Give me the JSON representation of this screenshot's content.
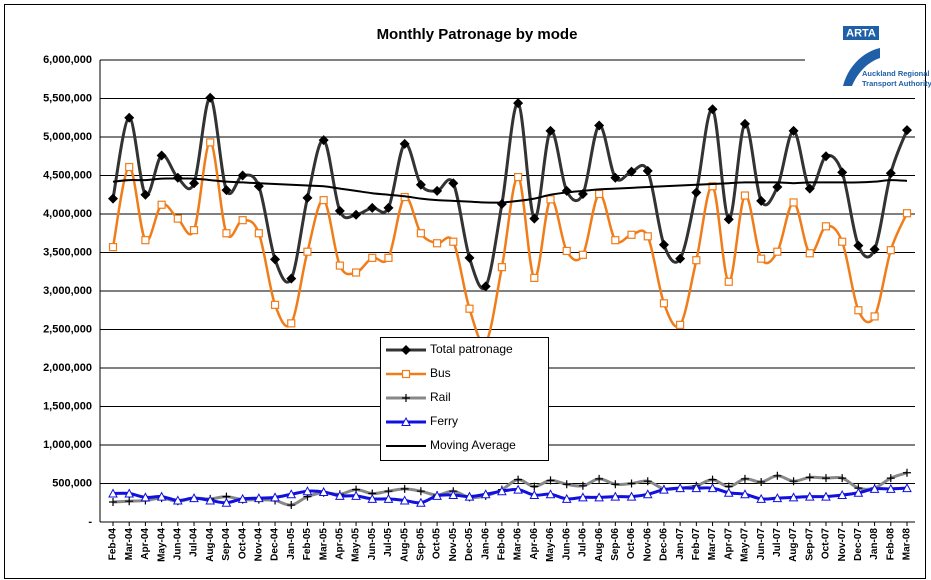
{
  "chart_data": {
    "type": "line",
    "title": "Monthly Patronage by mode",
    "logo": {
      "name": "ARTA",
      "org": [
        "Auckland Regional",
        "Transport Authority"
      ]
    },
    "categories": [
      "Feb-04",
      "Mar-04",
      "Apr-04",
      "May-04",
      "Jun-04",
      "Jul-04",
      "Aug-04",
      "Sep-04",
      "Oct-04",
      "Nov-04",
      "Dec-04",
      "Jan-05",
      "Feb-05",
      "Mar-05",
      "Apr-05",
      "May-05",
      "Jun-05",
      "Jul-05",
      "Aug-05",
      "Sep-05",
      "Oct-05",
      "Nov-05",
      "Dec-05",
      "Jan-06",
      "Feb-06",
      "Mar-06",
      "Apr-06",
      "May-06",
      "Jun-06",
      "Jul-06",
      "Aug-06",
      "Sep-06",
      "Oct-06",
      "Nov-06",
      "Dec-06",
      "Jan-07",
      "Feb-07",
      "Mar-07",
      "Apr-07",
      "May-07",
      "Jun-07",
      "Jul-07",
      "Aug-07",
      "Sep-07",
      "Oct-07",
      "Nov-07",
      "Dec-07",
      "Jan-08",
      "Feb-08",
      "Mar-08"
    ],
    "series": [
      {
        "name": "Total patronage",
        "color": "#333333",
        "marker": "diamond",
        "values": [
          4200000,
          5250000,
          4250000,
          4760000,
          4470000,
          4400000,
          5510000,
          4310000,
          4500000,
          4360000,
          3410000,
          3160000,
          4210000,
          4960000,
          4040000,
          3990000,
          4080000,
          4080000,
          4910000,
          4380000,
          4300000,
          4400000,
          3430000,
          3060000,
          4130000,
          5440000,
          3940000,
          5080000,
          4300000,
          4260000,
          5150000,
          4470000,
          4550000,
          4560000,
          3600000,
          3420000,
          4280000,
          5360000,
          3930000,
          5170000,
          4170000,
          4350000,
          5080000,
          4330000,
          4750000,
          4540000,
          3590000,
          3540000,
          4530000,
          5090000
        ]
      },
      {
        "name": "Bus",
        "color": "#f07d1a",
        "marker": "square",
        "values": [
          3570000,
          4610000,
          3660000,
          4120000,
          3940000,
          3790000,
          4930000,
          3750000,
          3920000,
          3750000,
          2820000,
          2580000,
          3510000,
          4180000,
          3330000,
          3240000,
          3430000,
          3430000,
          4220000,
          3750000,
          3620000,
          3640000,
          2770000,
          2330000,
          3310000,
          4480000,
          3170000,
          4190000,
          3520000,
          3470000,
          4260000,
          3660000,
          3730000,
          3710000,
          2840000,
          2560000,
          3400000,
          4360000,
          3120000,
          4240000,
          3420000,
          3510000,
          4150000,
          3490000,
          3840000,
          3640000,
          2750000,
          2670000,
          3530000,
          4010000
        ]
      },
      {
        "name": "Rail",
        "color": "#888888",
        "marker": "plus",
        "values": [
          260000,
          270000,
          280000,
          310000,
          270000,
          310000,
          300000,
          330000,
          290000,
          290000,
          280000,
          220000,
          330000,
          380000,
          360000,
          420000,
          370000,
          400000,
          430000,
          400000,
          350000,
          400000,
          320000,
          340000,
          420000,
          550000,
          460000,
          540000,
          490000,
          470000,
          560000,
          490000,
          500000,
          530000,
          430000,
          440000,
          470000,
          550000,
          460000,
          560000,
          520000,
          600000,
          530000,
          580000,
          570000,
          570000,
          440000,
          440000,
          570000,
          640000
        ]
      },
      {
        "name": "Ferry",
        "color": "#1010e0",
        "marker": "triangle",
        "values": [
          370000,
          370000,
          320000,
          330000,
          280000,
          310000,
          280000,
          250000,
          300000,
          310000,
          320000,
          360000,
          400000,
          390000,
          340000,
          340000,
          300000,
          300000,
          280000,
          250000,
          340000,
          350000,
          330000,
          360000,
          400000,
          420000,
          350000,
          360000,
          300000,
          320000,
          320000,
          330000,
          330000,
          360000,
          420000,
          440000,
          440000,
          440000,
          380000,
          360000,
          300000,
          310000,
          320000,
          330000,
          330000,
          350000,
          380000,
          430000,
          430000,
          440000
        ]
      },
      {
        "name": "Moving Average",
        "color": "#000000",
        "marker": "none",
        "values": [
          4420000,
          4440000,
          4440000,
          4460000,
          4460000,
          4460000,
          4440000,
          4420000,
          4410000,
          4400000,
          4390000,
          4380000,
          4370000,
          4360000,
          4330000,
          4300000,
          4270000,
          4250000,
          4230000,
          4200000,
          4180000,
          4170000,
          4160000,
          4150000,
          4150000,
          4170000,
          4200000,
          4250000,
          4280000,
          4300000,
          4320000,
          4330000,
          4340000,
          4350000,
          4360000,
          4370000,
          4380000,
          4390000,
          4400000,
          4410000,
          4410000,
          4410000,
          4400000,
          4410000,
          4410000,
          4410000,
          4410000,
          4420000,
          4440000,
          4430000
        ]
      }
    ],
    "ylim": [
      0,
      6000000
    ],
    "yticks": [
      {
        "value": 0,
        "label": "-"
      },
      {
        "value": 500000,
        "label": "500,000"
      },
      {
        "value": 1000000,
        "label": "1,000,000"
      },
      {
        "value": 1500000,
        "label": "1,500,000"
      },
      {
        "value": 2000000,
        "label": "2,000,000"
      },
      {
        "value": 2500000,
        "label": "2,500,000"
      },
      {
        "value": 3000000,
        "label": "3,000,000"
      },
      {
        "value": 3500000,
        "label": "3,500,000"
      },
      {
        "value": 4000000,
        "label": "4,000,000"
      },
      {
        "value": 4500000,
        "label": "4,500,000"
      },
      {
        "value": 5000000,
        "label": "5,000,000"
      },
      {
        "value": 5500000,
        "label": "5,500,000"
      },
      {
        "value": 6000000,
        "label": "6,000,000"
      }
    ],
    "grid": true,
    "legend": "center"
  }
}
